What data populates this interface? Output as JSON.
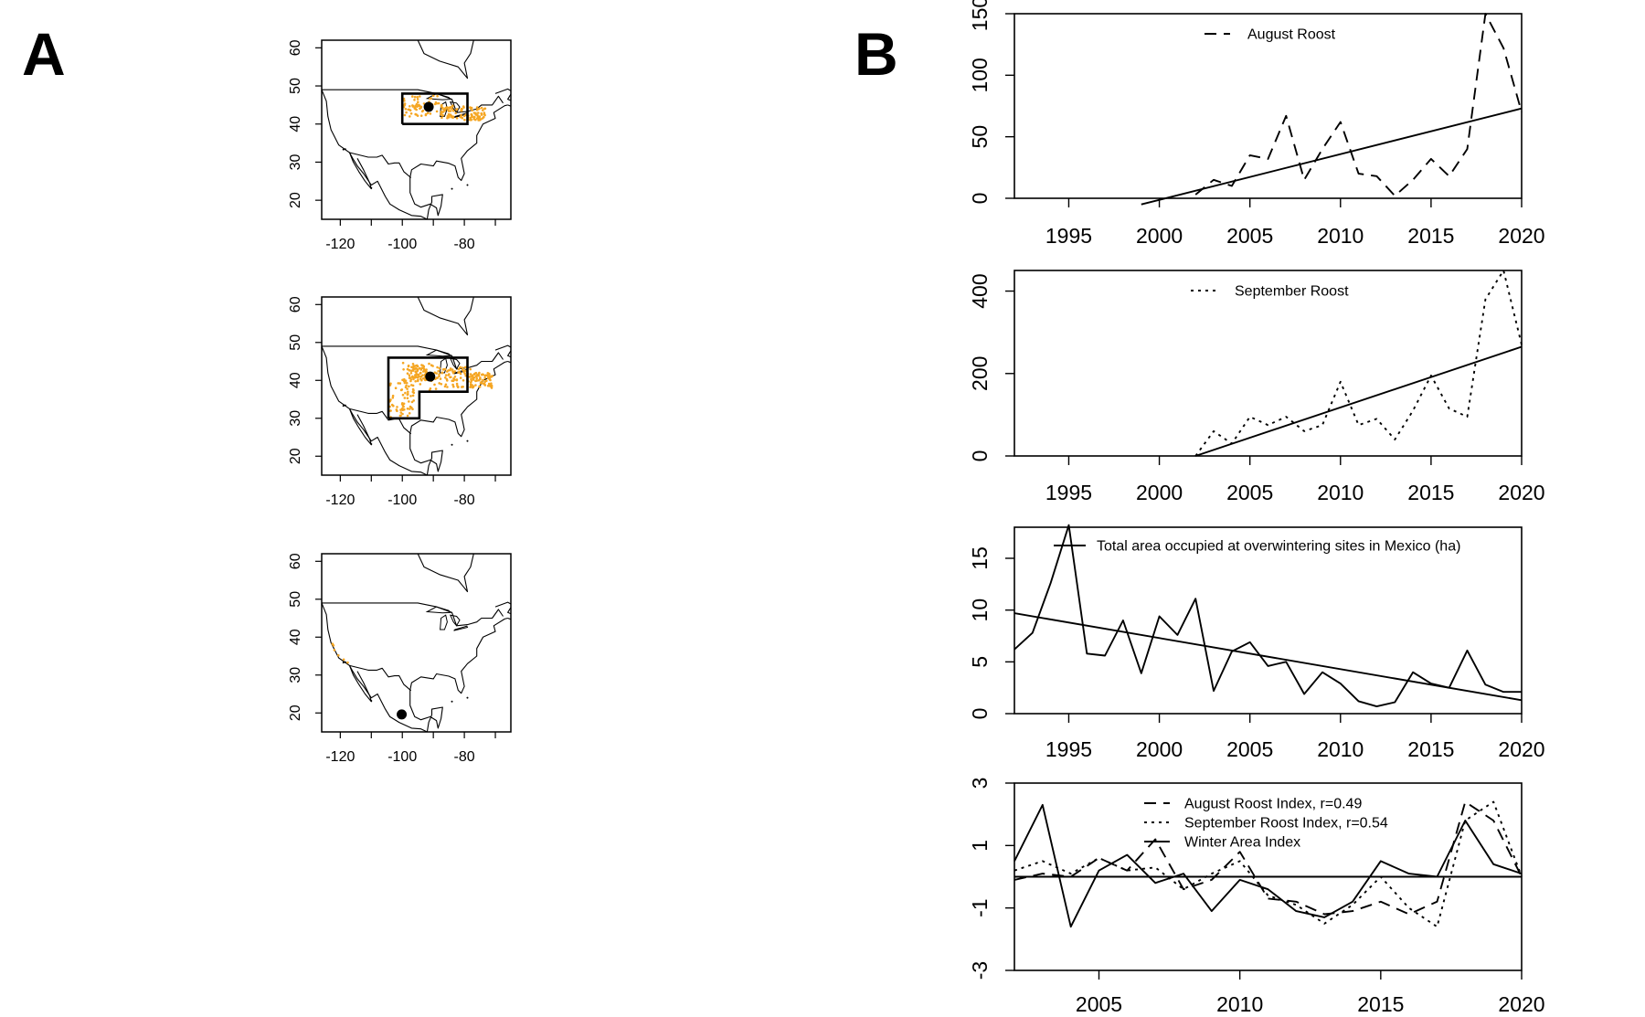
{
  "panel_labels": {
    "a": "A",
    "b": "B"
  },
  "colors": {
    "occurrence": "#f5a623",
    "line": "#000000"
  },
  "maps": {
    "xticks": [
      "-120",
      "-100",
      "-80"
    ],
    "yticks": [
      "60",
      "50",
      "40",
      "30",
      "20"
    ],
    "panels": [
      {
        "name": "august",
        "centroid": [
          -91.5,
          44.5
        ]
      },
      {
        "name": "september",
        "centroid": [
          -91.0,
          41.0
        ]
      },
      {
        "name": "winter",
        "centroid": [
          -100.2,
          19.6
        ]
      }
    ]
  },
  "chart_data": [
    {
      "type": "line",
      "title": "",
      "xlabel": "",
      "ylabel": "",
      "xlim": [
        1992,
        2020
      ],
      "ylim": [
        0,
        150
      ],
      "xticks": [
        "1995",
        "2000",
        "2005",
        "2010",
        "2015",
        "2020"
      ],
      "yticks": [
        "0",
        "50",
        "100",
        "150"
      ],
      "legend": {
        "position": "top",
        "entries": [
          "August Roost"
        ]
      },
      "series": [
        {
          "name": "August Roost",
          "style": "dashed",
          "x": [
            2002,
            2003,
            2004,
            2005,
            2006,
            2007,
            2008,
            2009,
            2010,
            2011,
            2012,
            2013,
            2014,
            2015,
            2016,
            2017,
            2018,
            2019,
            2020
          ],
          "y": [
            3,
            15,
            10,
            35,
            32,
            67,
            15,
            40,
            62,
            20,
            18,
            2,
            15,
            32,
            18,
            40,
            150,
            122,
            70
          ]
        },
        {
          "name": "",
          "style": "solid",
          "x": [
            1999,
            2020
          ],
          "y": [
            -5,
            73
          ]
        }
      ]
    },
    {
      "type": "line",
      "title": "",
      "xlabel": "",
      "ylabel": "",
      "xlim": [
        1992,
        2020
      ],
      "ylim": [
        0,
        450
      ],
      "xticks": [
        "1995",
        "2000",
        "2005",
        "2010",
        "2015",
        "2020"
      ],
      "yticks": [
        "0",
        "200",
        "400"
      ],
      "legend": {
        "position": "top",
        "entries": [
          "September Roost"
        ]
      },
      "series": [
        {
          "name": "September Roost",
          "style": "dotted",
          "x": [
            2002,
            2003,
            2004,
            2005,
            2006,
            2007,
            2008,
            2009,
            2010,
            2011,
            2012,
            2013,
            2014,
            2015,
            2016,
            2017,
            2018,
            2019,
            2020
          ],
          "y": [
            0,
            60,
            30,
            95,
            75,
            95,
            60,
            75,
            180,
            75,
            90,
            40,
            110,
            195,
            115,
            95,
            380,
            450,
            270
          ]
        },
        {
          "name": "",
          "style": "solid",
          "x": [
            2002,
            2020
          ],
          "y": [
            0,
            265
          ]
        }
      ]
    },
    {
      "type": "line",
      "title": "",
      "xlabel": "",
      "ylabel": "",
      "xlim": [
        1992,
        2020
      ],
      "ylim": [
        0,
        18
      ],
      "xticks": [
        "1995",
        "2000",
        "2005",
        "2010",
        "2015",
        "2020"
      ],
      "yticks": [
        "0",
        "5",
        "10",
        "15"
      ],
      "legend": {
        "position": "top",
        "entries": [
          "Total area occupied at overwintering sites in Mexico (ha)"
        ]
      },
      "series": [
        {
          "name": "Total area occupied at overwintering sites in Mexico (ha)",
          "style": "solid",
          "x": [
            1992,
            1993,
            1994,
            1995,
            1996,
            1997,
            1998,
            1999,
            2000,
            2001,
            2002,
            2003,
            2004,
            2005,
            2006,
            2007,
            2008,
            2009,
            2010,
            2011,
            2012,
            2013,
            2014,
            2015,
            2016,
            2017,
            2018,
            2019,
            2020
          ],
          "y": [
            6.2,
            7.8,
            12.6,
            18.2,
            5.8,
            5.6,
            9.0,
            3.9,
            9.4,
            7.6,
            11.1,
            2.2,
            6.0,
            6.9,
            4.6,
            5.0,
            1.9,
            4.0,
            2.9,
            1.2,
            0.7,
            1.1,
            4.0,
            2.9,
            2.5,
            6.1,
            2.8,
            2.1,
            2.1
          ]
        },
        {
          "name": "",
          "style": "solid",
          "x": [
            1992,
            2020
          ],
          "y": [
            9.7,
            1.3
          ]
        }
      ]
    },
    {
      "type": "line",
      "title": "",
      "xlabel": "",
      "ylabel": "",
      "xlim": [
        2002,
        2020
      ],
      "ylim": [
        -3,
        3
      ],
      "xticks": [
        "2005",
        "2010",
        "2015",
        "2020"
      ],
      "yticks": [
        "-3",
        "-1",
        "1",
        "3"
      ],
      "legend": {
        "position": "top-center",
        "entries": [
          "August Roost Index, r=0.49",
          "September Roost Index, r=0.54",
          "Winter Area Index"
        ]
      },
      "series": [
        {
          "name": "August Roost Index, r=0.49",
          "style": "dashed",
          "x": [
            2002,
            2003,
            2004,
            2005,
            2006,
            2007,
            2008,
            2009,
            2010,
            2011,
            2012,
            2013,
            2014,
            2015,
            2016,
            2017,
            2018,
            2019,
            2020
          ],
          "y": [
            -0.1,
            0.1,
            0.0,
            0.6,
            0.2,
            1.2,
            -0.4,
            -0.1,
            0.8,
            -0.7,
            -0.8,
            -1.2,
            -1.1,
            -0.8,
            -1.2,
            -0.8,
            2.4,
            1.8,
            0.0
          ]
        },
        {
          "name": "September Roost Index, r=0.54",
          "style": "dotted",
          "x": [
            2002,
            2003,
            2004,
            2005,
            2006,
            2007,
            2008,
            2009,
            2010,
            2011,
            2012,
            2013,
            2014,
            2015,
            2016,
            2017,
            2018,
            2019,
            2020
          ],
          "y": [
            0.2,
            0.5,
            0.1,
            0.6,
            0.2,
            0.3,
            -0.4,
            0.1,
            0.5,
            -0.6,
            -0.9,
            -1.5,
            -0.9,
            0.0,
            -1.0,
            -1.6,
            1.8,
            2.4,
            0.0
          ]
        },
        {
          "name": "Winter Area Index",
          "style": "solid",
          "x": [
            2002,
            2003,
            2004,
            2005,
            2006,
            2007,
            2008,
            2009,
            2010,
            2011,
            2012,
            2013,
            2014,
            2015,
            2016,
            2017,
            2018,
            2019,
            2020
          ],
          "y": [
            0.5,
            2.3,
            -1.6,
            0.2,
            0.7,
            -0.2,
            0.1,
            -1.1,
            -0.1,
            -0.4,
            -1.1,
            -1.3,
            -0.8,
            0.5,
            0.1,
            0.0,
            1.8,
            0.4,
            0.1
          ]
        },
        {
          "name": "",
          "style": "solid",
          "x": [
            2002,
            2020
          ],
          "y": [
            0,
            0
          ]
        }
      ]
    }
  ]
}
